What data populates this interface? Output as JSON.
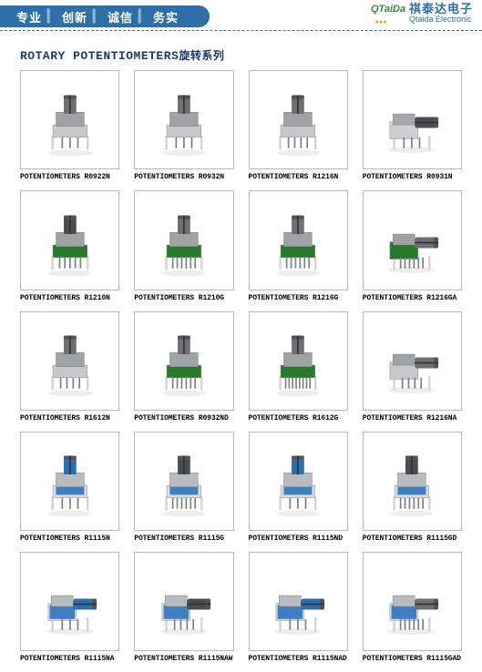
{
  "header": {
    "slogan": [
      "专业",
      "创新",
      "诚信",
      "务实"
    ],
    "brand_cn": "祺泰达电子",
    "brand_en": "Qtaida  Electronic"
  },
  "title_en": "ROTARY POTENTIOMETERS",
  "title_zh": "旋转系列",
  "grid": {
    "cols": 4,
    "cell_border_color": "#b9b9b9",
    "caption_prefix": "POTENTIOMETERS ",
    "items": [
      {
        "model": "R0922N",
        "body": "#9fa3a6",
        "shaft": "#6d6f71",
        "base": "#c6c8ca",
        "pins": 3,
        "legs": true
      },
      {
        "model": "R0932N",
        "body": "#9fa3a6",
        "shaft": "#6d6f71",
        "base": "#c6c8ca",
        "pins": 3,
        "legs": true
      },
      {
        "model": "R1216N",
        "body": "#9fa3a6",
        "shaft": "#6d6f71",
        "base": "#c6c8ca",
        "pins": 4,
        "legs": true
      },
      {
        "model": "R0931N",
        "body": "#a6a8aa",
        "shaft": "#4a4c4e",
        "base": "#cdcfd1",
        "pins": 3,
        "legs": true,
        "horiz": true
      },
      {
        "model": "R1210N",
        "body": "#9fa3a6",
        "shaft": "#4a4c4e",
        "base": "#287a2a",
        "pins": 5,
        "legs": true
      },
      {
        "model": "R1210G",
        "body": "#9fa3a6",
        "shaft": "#6d6f71",
        "base": "#287a2a",
        "pins": 6,
        "legs": true
      },
      {
        "model": "R1216G",
        "body": "#9fa3a6",
        "shaft": "#6d6f71",
        "base": "#287a2a",
        "pins": 6,
        "legs": true
      },
      {
        "model": "R1216GA",
        "body": "#9fa3a6",
        "shaft": "#6d6f71",
        "base": "#287a2a",
        "pins": 6,
        "legs": true,
        "horiz": true
      },
      {
        "model": "R1612N",
        "body": "#9fa3a6",
        "shaft": "#6d6f71",
        "base": "#c6c8ca",
        "pins": 4,
        "legs": true
      },
      {
        "model": "R0932ND",
        "body": "#9fa3a6",
        "shaft": "#6d6f71",
        "base": "#287a2a",
        "pins": 6,
        "legs": true
      },
      {
        "model": "R1612G",
        "body": "#9fa3a6",
        "shaft": "#6d6f71",
        "base": "#287a2a",
        "pins": 8,
        "legs": true
      },
      {
        "model": "R1216NA",
        "body": "#9fa3a6",
        "shaft": "#6d6f71",
        "base": "#c6c8ca",
        "pins": 4,
        "legs": true,
        "horiz": true
      },
      {
        "model": "R1115N",
        "body": "#b8bcc0",
        "shaft": "#2b6fb0",
        "base": "#d8dadc",
        "pins": 3,
        "legs": true,
        "blue": true
      },
      {
        "model": "R1115G",
        "body": "#b8bcc0",
        "shaft": "#4a4c4e",
        "base": "#d8dadc",
        "pins": 6,
        "legs": true,
        "blue": true
      },
      {
        "model": "R1115ND",
        "body": "#b8bcc0",
        "shaft": "#2b6fb0",
        "base": "#d8dadc",
        "pins": 3,
        "legs": true,
        "blue": true
      },
      {
        "model": "R1115GD",
        "body": "#b8bcc0",
        "shaft": "#4a4c4e",
        "base": "#d8dadc",
        "pins": 6,
        "legs": true,
        "blue": true
      },
      {
        "model": "R1115NA",
        "body": "#b8bcc0",
        "shaft": "#2b6fb0",
        "base": "#d8dadc",
        "pins": 3,
        "legs": true,
        "blue": true,
        "horiz": true
      },
      {
        "model": "R1115NAW",
        "body": "#b8bcc0",
        "shaft": "#4a4c4e",
        "base": "#d8dadc",
        "pins": 4,
        "legs": true,
        "blue": true,
        "horiz": true
      },
      {
        "model": "R1115NAD",
        "body": "#b8bcc0",
        "shaft": "#2b6fb0",
        "base": "#d8dadc",
        "pins": 3,
        "legs": true,
        "blue": true,
        "horiz": true
      },
      {
        "model": "R1115GAD",
        "body": "#b8bcc0",
        "shaft": "#6d6f71",
        "base": "#d8dadc",
        "pins": 6,
        "legs": true,
        "blue": true,
        "horiz": true
      }
    ]
  },
  "colors": {
    "header_bar": "#2d6fa8",
    "header_text": "#ffffff",
    "brand_text": "#2d6fa8",
    "title_text": "#1a3a6e",
    "caption_text": "#000000",
    "pin": "#7f8284",
    "pin_highlight": "#d4d6d8"
  }
}
